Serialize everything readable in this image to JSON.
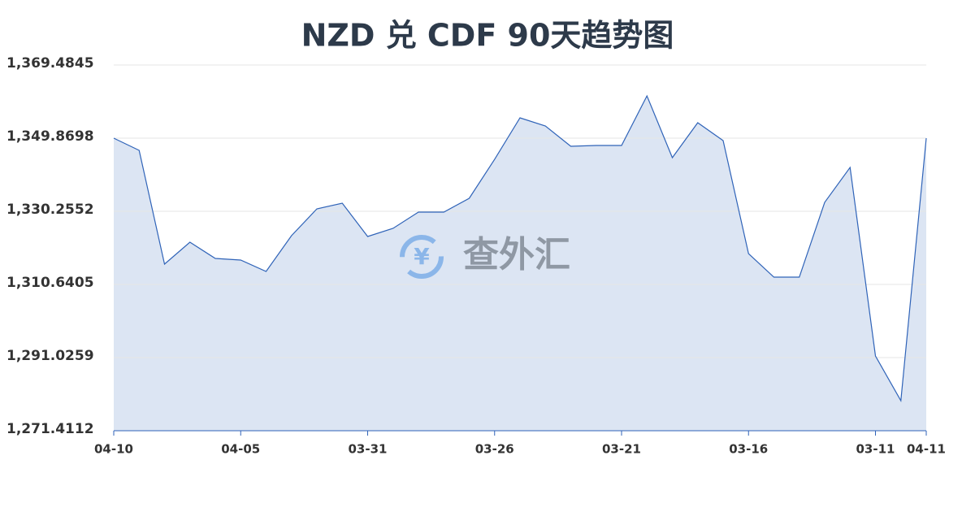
{
  "chart_data": {
    "type": "area",
    "title": "NZD 兑 CDF 90天趋势图",
    "watermark": "查外汇",
    "categories": [
      "04-10",
      null,
      null,
      null,
      null,
      "04-05",
      null,
      null,
      null,
      null,
      "03-31",
      null,
      null,
      null,
      null,
      "03-26",
      null,
      null,
      null,
      null,
      "03-21",
      null,
      null,
      null,
      null,
      "03-16",
      null,
      null,
      null,
      null,
      "03-11",
      null,
      "04-11"
    ],
    "series": [
      {
        "name": "NZD/CDF",
        "color": "#2f63b8",
        "values": [
          1349.87,
          1346.6,
          1316.09,
          1321.97,
          1317.61,
          1317.18,
          1314.13,
          1323.72,
          1330.91,
          1332.43,
          1323.5,
          1325.68,
          1330.04,
          1330.04,
          1333.74,
          1344.2,
          1355.32,
          1353.14,
          1347.69,
          1347.91,
          1347.91,
          1361.2,
          1344.64,
          1354.01,
          1349.22,
          1318.92,
          1312.6,
          1312.6,
          1332.65,
          1342.02,
          1291.46,
          1279.47,
          1349.87
        ]
      }
    ],
    "ylim": [
      1271.4112,
      1369.4845
    ],
    "yticks": [
      {
        "value": 1271.4112,
        "label": "1,271.4112"
      },
      {
        "value": 1291.0259,
        "label": "1,291.0259"
      },
      {
        "value": 1310.6405,
        "label": "1,310.6405"
      },
      {
        "value": 1330.2552,
        "label": "1,330.2552"
      },
      {
        "value": 1349.8698,
        "label": "1,349.8698"
      },
      {
        "value": 1369.4845,
        "label": "1,369.4845"
      }
    ],
    "grid": true
  }
}
